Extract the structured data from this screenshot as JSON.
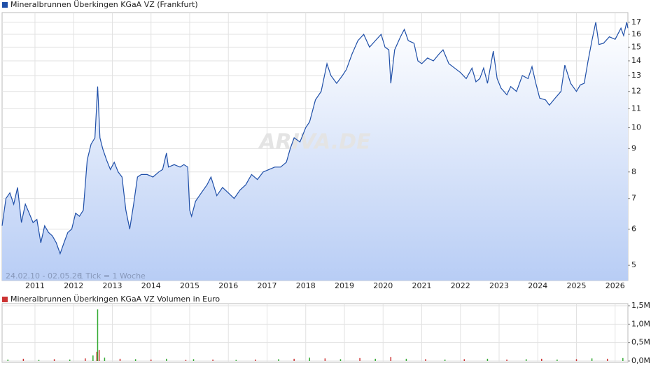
{
  "chart_data": [
    {
      "type": "line",
      "title": "Mineralbrunnen Überkingen KGaA VZ (Frankfurt)",
      "color": "#1f4fa8",
      "watermark": "ARIVA.DE",
      "date_range": "24.02.10 - 02.05.26",
      "tick_note": "1 Tick = 1 Woche",
      "log_scale": true,
      "grid": true,
      "xlim": [
        2010.15,
        2026.33
      ],
      "xticks": [
        2011,
        2012,
        2013,
        2014,
        2015,
        2016,
        2017,
        2018,
        2019,
        2020,
        2021,
        2022,
        2023,
        2024,
        2025,
        2026
      ],
      "ylim": [
        4.63,
        17.85
      ],
      "yticks": [
        5,
        6,
        7,
        8,
        9,
        10,
        11,
        12,
        13,
        14,
        15,
        16,
        17
      ],
      "x": [
        2010.15,
        2010.25,
        2010.35,
        2010.45,
        2010.55,
        2010.65,
        2010.75,
        2010.85,
        2010.95,
        2011.05,
        2011.15,
        2011.25,
        2011.35,
        2011.45,
        2011.55,
        2011.65,
        2011.75,
        2011.85,
        2011.95,
        2012.05,
        2012.15,
        2012.25,
        2012.35,
        2012.45,
        2012.55,
        2012.62,
        2012.68,
        2012.75,
        2012.85,
        2012.95,
        2013.05,
        2013.15,
        2013.25,
        2013.35,
        2013.45,
        2013.55,
        2013.65,
        2013.75,
        2013.9,
        2014.05,
        2014.2,
        2014.3,
        2014.4,
        2014.45,
        2014.6,
        2014.75,
        2014.85,
        2014.95,
        2015.0,
        2015.05,
        2015.15,
        2015.3,
        2015.45,
        2015.55,
        2015.7,
        2015.85,
        2016.0,
        2016.15,
        2016.3,
        2016.45,
        2016.6,
        2016.75,
        2016.9,
        2017.05,
        2017.2,
        2017.35,
        2017.5,
        2017.6,
        2017.7,
        2017.85,
        2018.0,
        2018.1,
        2018.25,
        2018.4,
        2018.55,
        2018.65,
        2018.8,
        2018.95,
        2019.05,
        2019.2,
        2019.35,
        2019.5,
        2019.65,
        2019.8,
        2019.95,
        2020.05,
        2020.15,
        2020.2,
        2020.3,
        2020.45,
        2020.55,
        2020.65,
        2020.8,
        2020.9,
        2021.0,
        2021.15,
        2021.3,
        2021.45,
        2021.55,
        2021.7,
        2021.85,
        2022.0,
        2022.15,
        2022.3,
        2022.4,
        2022.5,
        2022.6,
        2022.7,
        2022.85,
        2022.95,
        2023.05,
        2023.2,
        2023.3,
        2023.45,
        2023.6,
        2023.75,
        2023.85,
        2023.95,
        2024.05,
        2024.2,
        2024.3,
        2024.45,
        2024.6,
        2024.7,
        2024.85,
        2025.0,
        2025.1,
        2025.2,
        2025.3,
        2025.4,
        2025.5,
        2025.58,
        2025.7,
        2025.85,
        2026.0,
        2026.15,
        2026.22,
        2026.3,
        2026.33
      ],
      "values": [
        6.1,
        7.0,
        7.2,
        6.8,
        7.4,
        6.2,
        6.8,
        6.5,
        6.2,
        6.3,
        5.6,
        6.1,
        5.9,
        5.8,
        5.6,
        5.3,
        5.6,
        5.9,
        6.0,
        6.5,
        6.4,
        6.6,
        8.5,
        9.2,
        9.5,
        12.3,
        9.5,
        9.0,
        8.5,
        8.1,
        8.4,
        8.0,
        7.8,
        6.6,
        6.0,
        6.8,
        7.8,
        7.9,
        7.9,
        7.8,
        8.0,
        8.1,
        8.8,
        8.2,
        8.3,
        8.2,
        8.3,
        8.2,
        6.6,
        6.4,
        6.9,
        7.2,
        7.5,
        7.8,
        7.1,
        7.4,
        7.2,
        7.0,
        7.3,
        7.5,
        7.9,
        7.7,
        8.0,
        8.1,
        8.2,
        8.2,
        8.4,
        9.0,
        9.5,
        9.3,
        10.0,
        10.3,
        11.5,
        12.0,
        13.8,
        13.0,
        12.5,
        13.0,
        13.4,
        14.5,
        15.5,
        16.0,
        15.0,
        15.5,
        16.0,
        15.0,
        14.8,
        12.5,
        14.8,
        15.8,
        16.4,
        15.5,
        15.3,
        14.0,
        13.8,
        14.2,
        14.0,
        14.5,
        14.8,
        13.8,
        13.5,
        13.2,
        12.8,
        13.5,
        12.6,
        12.8,
        13.5,
        12.5,
        14.7,
        12.8,
        12.2,
        11.8,
        12.3,
        12.0,
        13.0,
        12.8,
        13.6,
        12.5,
        11.6,
        11.5,
        11.2,
        11.6,
        12.0,
        13.7,
        12.5,
        12.0,
        12.4,
        12.5,
        14.0,
        15.5,
        17.0,
        15.2,
        15.3,
        15.8,
        15.6,
        16.5,
        15.9,
        17.0,
        16.5
      ]
    },
    {
      "type": "volume",
      "title": "Mineralbrunnen Überkingen KGaA VZ Volumen in Euro",
      "color": "#cc3333",
      "grid": true,
      "xlim": [
        2010.15,
        2026.33
      ],
      "xticks": [
        2011,
        2012,
        2013,
        2014,
        2015,
        2016,
        2017,
        2018,
        2019,
        2020,
        2021,
        2022,
        2023,
        2024,
        2025,
        2026
      ],
      "ylim": [
        0,
        1500000
      ],
      "yticks": [
        {
          "value": 0,
          "label": "0,0M"
        },
        {
          "value": 500000,
          "label": "0,5M"
        },
        {
          "value": 1000000,
          "label": "1,0M"
        },
        {
          "value": 1500000,
          "label": "1,5M"
        }
      ],
      "x": [
        2010.3,
        2010.7,
        2011.1,
        2011.5,
        2011.9,
        2012.3,
        2012.5,
        2012.6,
        2012.62,
        2012.66,
        2012.8,
        2013.2,
        2013.6,
        2014.0,
        2014.4,
        2014.9,
        2015.1,
        2015.6,
        2016.2,
        2016.7,
        2017.3,
        2017.7,
        2018.1,
        2018.5,
        2018.9,
        2019.4,
        2019.8,
        2020.2,
        2020.6,
        2021.1,
        2021.6,
        2022.1,
        2022.7,
        2023.2,
        2023.7,
        2024.1,
        2024.5,
        2025.0,
        2025.4,
        2025.8,
        2026.2
      ],
      "values": [
        40000,
        60000,
        30000,
        50000,
        40000,
        70000,
        150000,
        250000,
        1400000,
        300000,
        90000,
        60000,
        50000,
        40000,
        60000,
        30000,
        50000,
        40000,
        30000,
        40000,
        50000,
        60000,
        90000,
        70000,
        50000,
        80000,
        60000,
        110000,
        60000,
        50000,
        40000,
        50000,
        60000,
        40000,
        50000,
        60000,
        40000,
        50000,
        70000,
        60000,
        80000
      ],
      "colors": [
        "#33aa33",
        "#cc3333",
        "#33aa33",
        "#cc3333",
        "#33aa33",
        "#cc3333",
        "#33aa33",
        "#cc3333",
        "#33aa33",
        "#cc3333",
        "#33aa33",
        "#cc3333",
        "#33aa33",
        "#cc3333",
        "#33aa33",
        "#cc3333",
        "#33aa33",
        "#cc3333",
        "#33aa33",
        "#cc3333",
        "#33aa33",
        "#cc3333",
        "#33aa33",
        "#cc3333",
        "#33aa33",
        "#cc3333",
        "#33aa33",
        "#cc3333",
        "#33aa33",
        "#cc3333",
        "#33aa33",
        "#cc3333",
        "#33aa33",
        "#cc3333",
        "#33aa33",
        "#cc3333",
        "#33aa33",
        "#cc3333",
        "#33aa33",
        "#cc3333",
        "#33aa33"
      ]
    }
  ]
}
